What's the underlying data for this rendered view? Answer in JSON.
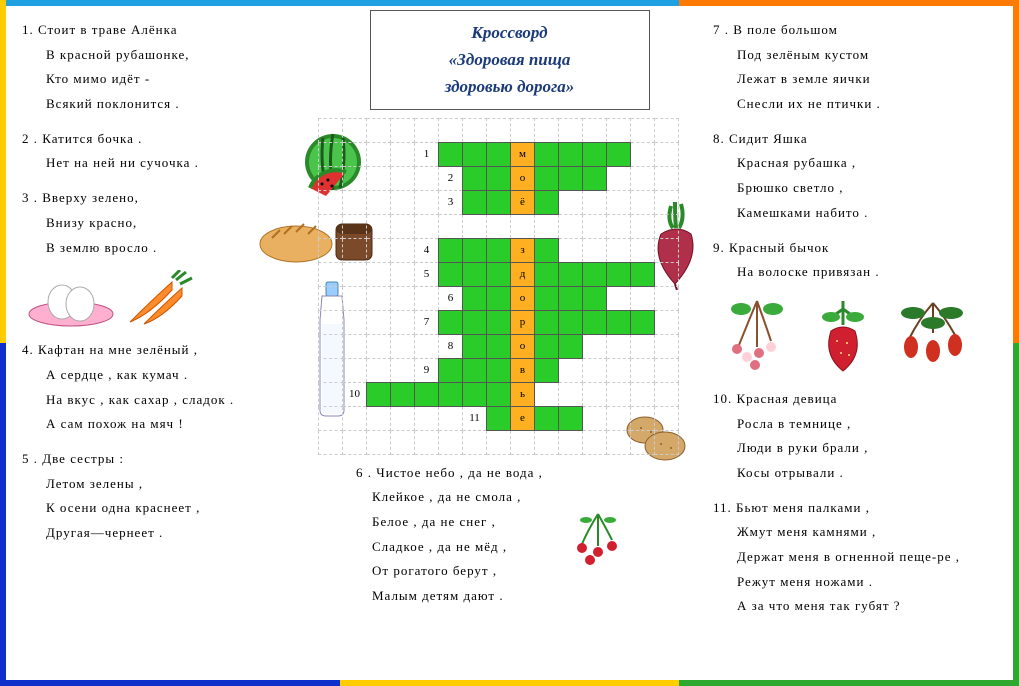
{
  "border_colors": {
    "top_left": "#1fa0e0",
    "top_mid": "#1fa0e0",
    "top_right": "#ff7a00",
    "left_top": "#ffcc00",
    "left_bot": "#1030cc",
    "right_top": "#ff7a00",
    "right_bot": "#2ea82e",
    "bot_left": "#1030cc",
    "bot_mid": "#ffcc00",
    "bot_right": "#2ea82e"
  },
  "title": {
    "line1": "Кроссворд",
    "line2": "«Здоровая пища",
    "line3": "здоровью дорога»"
  },
  "crossword": {
    "cell_fill": "#29cc29",
    "highlight_fill": "#ffb020",
    "grid_border": "#555555",
    "dot_color": "#cccccc",
    "rows": 15,
    "cols": 15,
    "vertical_word": [
      "м",
      "о",
      "ё",
      "",
      "з",
      "д",
      "о",
      "р",
      "о",
      "в",
      "ь",
      "е"
    ],
    "entries": [
      {
        "num": "1",
        "row": 1,
        "col_num": 4,
        "start": 5,
        "end": 12,
        "letter_col": 8,
        "letter": "м"
      },
      {
        "num": "2",
        "row": 2,
        "col_num": 5,
        "start": 6,
        "end": 11,
        "letter_col": 8,
        "letter": "о"
      },
      {
        "num": "3",
        "row": 3,
        "col_num": 5,
        "start": 6,
        "end": 9,
        "letter_col": 8,
        "letter": "ё"
      },
      {
        "num": "4",
        "row": 5,
        "col_num": 4,
        "start": 5,
        "end": 9,
        "letter_col": 8,
        "letter": "з"
      },
      {
        "num": "5",
        "row": 6,
        "col_num": 4,
        "start": 5,
        "end": 13,
        "letter_col": 8,
        "letter": "д"
      },
      {
        "num": "6",
        "row": 7,
        "col_num": 5,
        "start": 6,
        "end": 11,
        "letter_col": 8,
        "letter": "о"
      },
      {
        "num": "7",
        "row": 8,
        "col_num": 4,
        "start": 5,
        "end": 13,
        "letter_col": 8,
        "letter": "р"
      },
      {
        "num": "8",
        "row": 9,
        "col_num": 5,
        "start": 6,
        "end": 10,
        "letter_col": 8,
        "letter": "о"
      },
      {
        "num": "9",
        "row": 10,
        "col_num": 4,
        "start": 5,
        "end": 9,
        "letter_col": 8,
        "letter": "в"
      },
      {
        "num": "10",
        "row": 11,
        "col_num": 1,
        "start": 2,
        "end": 8,
        "letter_col": 8,
        "letter": "ь"
      },
      {
        "num": "11",
        "row": 12,
        "col_num": 6,
        "start": 7,
        "end": 10,
        "letter_col": 8,
        "letter": "е"
      }
    ]
  },
  "riddles_left": [
    {
      "n": "1.",
      "lines": [
        "Стоит в траве Алёнка",
        "В красной рубашонке,",
        "Кто мимо идёт -",
        "Всякий поклонится ."
      ]
    },
    {
      "n": "2 .",
      "lines": [
        "Катится бочка .",
        "Нет на ней ни сучочка ."
      ]
    },
    {
      "n": "3 .",
      "lines": [
        "Вверху зелено,",
        "Внизу красно,",
        "В землю вросло ."
      ]
    },
    {
      "n": "4.",
      "lines": [
        "Кафтан на мне зелёный ,",
        "А сердце , как кумач .",
        "На вкус , как сахар , сладок .",
        "А сам похож на мяч !"
      ]
    },
    {
      "n": "5 .",
      "lines": [
        "Две сестры :",
        "Летом зелены ,",
        "К осени одна краснеет ,",
        "Другая—чернеет ."
      ]
    }
  ],
  "riddles_right": [
    {
      "n": "7 .",
      "lines": [
        "В поле большом",
        "Под зелёным кустом",
        "Лежат в земле яички",
        "Снесли их не птички ."
      ]
    },
    {
      "n": "8.",
      "lines": [
        "Сидит Яшка",
        "Красная рубашка ,",
        "Брюшко светло ,",
        "Камешками набито ."
      ]
    },
    {
      "n": "9.",
      "lines": [
        "Красный бычок",
        "На волоске привязан ."
      ]
    },
    {
      "n": "10.",
      "lines": [
        "Красная девица",
        "Росла в темнице ,",
        "Люди в руки брали ,",
        "Косы отрывали ."
      ]
    },
    {
      "n": "11.",
      "lines": [
        "Бьют меня палками ,",
        "Жмут меня камнями ,",
        "Держат меня в огненной пеще-ре ,",
        "Режут меня ножами .",
        "А за что меня так губят ?"
      ]
    }
  ],
  "riddle_center": {
    "n": "6 .",
    "lines": [
      "Чистое небо , да не вода ,",
      "Клейкое , да не смола ,",
      "Белое , да не снег ,",
      "Сладкое , да не мёд ,",
      "От рогатого берут ,",
      "Малым детям дают ."
    ]
  },
  "icons": {
    "watermelon": "watermelon-icon",
    "bread": "bread-icon",
    "eggs": "eggs-icon",
    "carrot": "carrot-icon",
    "milk": "milk-icon",
    "beet": "beet-icon",
    "potato": "potato-icon",
    "cranberry": "cranberry-icon",
    "currant": "currant-icon",
    "strawberry": "strawberry-icon",
    "rosehip": "rosehip-icon"
  }
}
